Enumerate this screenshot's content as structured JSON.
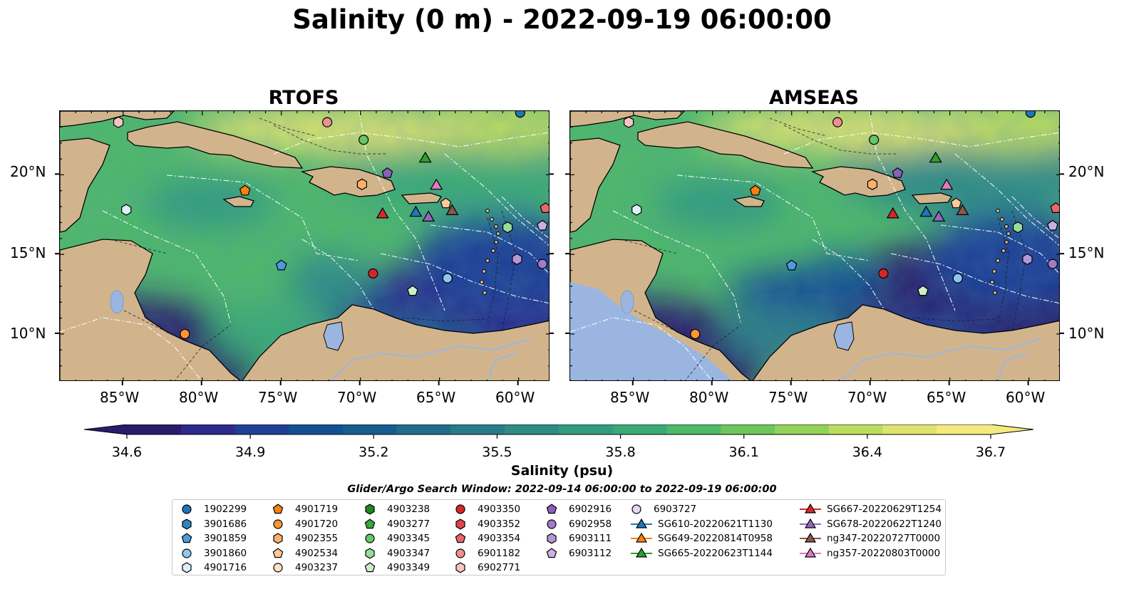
{
  "title": "Salinity (0 m) - 2022-09-19 06:00:00",
  "panels": [
    {
      "title": "RTOFS"
    },
    {
      "title": "AMSEAS"
    }
  ],
  "lon_ticks": [
    "85°W",
    "80°W",
    "75°W",
    "70°W",
    "65°W",
    "60°W"
  ],
  "lat_ticks": [
    "20°N",
    "15°N",
    "10°N"
  ],
  "colorbar": {
    "label": "Salinity (psu)",
    "ticks": [
      "34.6",
      "34.9",
      "35.2",
      "35.5",
      "35.8",
      "36.1",
      "36.4",
      "36.7"
    ],
    "min": 34.6,
    "max": 36.7,
    "extend": "both",
    "colormap": "haline",
    "colors": [
      "#2a1b6b",
      "#2c2a8c",
      "#1f3e96",
      "#134f93",
      "#155e8f",
      "#1f6d8b",
      "#297c87",
      "#2f8c84",
      "#329b7f",
      "#3aaa75",
      "#4eb968",
      "#6dc65b",
      "#94d159",
      "#bcdc61",
      "#dfe36f",
      "#f4ea80"
    ]
  },
  "search_window": "Glider/Argo Search Window: 2022-09-14 06:00:00 to 2022-09-19 06:00:00",
  "land_color": "#d2b48c",
  "lake_color": "#9ab6e0",
  "legend": [
    {
      "label": "1902299",
      "marker": "circle",
      "color": "#1f77b4",
      "line": false
    },
    {
      "label": "3901686",
      "marker": "hexagon",
      "color": "#2e86c1",
      "line": false
    },
    {
      "label": "3901859",
      "marker": "pentagon",
      "color": "#4c9be0",
      "line": false
    },
    {
      "label": "3901860",
      "marker": "circle",
      "color": "#8ec6ee",
      "line": false
    },
    {
      "label": "4901716",
      "marker": "hexagon",
      "color": "#dbeefb",
      "line": false
    },
    {
      "label": "4901719",
      "marker": "pentagon",
      "color": "#ff7f0e",
      "line": false
    },
    {
      "label": "4901720",
      "marker": "circle",
      "color": "#ff9533",
      "line": false
    },
    {
      "label": "4902355",
      "marker": "hexagon",
      "color": "#ffb066",
      "line": false
    },
    {
      "label": "4902534",
      "marker": "pentagon",
      "color": "#ffc999",
      "line": false
    },
    {
      "label": "4903237",
      "marker": "circle",
      "color": "#ffe0c2",
      "line": false
    },
    {
      "label": "4903238",
      "marker": "hexagon",
      "color": "#1e8a1e",
      "line": false
    },
    {
      "label": "4903277",
      "marker": "pentagon",
      "color": "#3aa83a",
      "line": false
    },
    {
      "label": "4903345",
      "marker": "circle",
      "color": "#66c766",
      "line": false
    },
    {
      "label": "4903347",
      "marker": "hexagon",
      "color": "#98dc98",
      "line": false
    },
    {
      "label": "4903349",
      "marker": "pentagon",
      "color": "#cdf0c6",
      "line": false
    },
    {
      "label": "4903350",
      "marker": "circle",
      "color": "#d62728",
      "line": false
    },
    {
      "label": "4903352",
      "marker": "hexagon",
      "color": "#e0454a",
      "line": false
    },
    {
      "label": "4903354",
      "marker": "pentagon",
      "color": "#e8676a",
      "line": false
    },
    {
      "label": "6901182",
      "marker": "circle",
      "color": "#f08f8f",
      "line": false
    },
    {
      "label": "6902771",
      "marker": "hexagon",
      "color": "#f7c3c3",
      "line": false
    },
    {
      "label": "6902916",
      "marker": "pentagon",
      "color": "#8c5fb8",
      "line": false
    },
    {
      "label": "6902958",
      "marker": "circle",
      "color": "#a07cc5",
      "line": false
    },
    {
      "label": "6903111",
      "marker": "hexagon",
      "color": "#b596d6",
      "line": false
    },
    {
      "label": "6903112",
      "marker": "pentagon",
      "color": "#c9b0e3",
      "line": false
    },
    {
      "label": "6903727",
      "marker": "circle",
      "color": "#e5d6f3",
      "line": false
    },
    {
      "label": "SG610-20220621T1130",
      "marker": "triangle",
      "color": "#1f77b4",
      "line": true
    },
    {
      "label": "SG649-20220814T0958",
      "marker": "triangle",
      "color": "#ff7f0e",
      "line": true
    },
    {
      "label": "SG665-20220623T1144",
      "marker": "triangle",
      "color": "#2ca02c",
      "line": true
    },
    {
      "label": "SG667-20220629T1254",
      "marker": "triangle",
      "color": "#d62728",
      "line": true
    },
    {
      "label": "SG678-20220622T1240",
      "marker": "triangle",
      "color": "#9467bd",
      "line": true
    },
    {
      "label": "ng347-20220727T0000",
      "marker": "triangle",
      "color": "#8c564b",
      "line": true
    },
    {
      "label": "ng357-20220803T0000",
      "marker": "triangle",
      "color": "#e377c2",
      "line": true
    }
  ],
  "map_extent": {
    "lon": [
      -89,
      -58
    ],
    "lat": [
      7,
      24
    ]
  },
  "observations": [
    {
      "id": "1902299",
      "lon": -59.9,
      "lat": 23.9
    },
    {
      "id": "3901860",
      "lon": -64.5,
      "lat": 13.5
    },
    {
      "id": "4901716",
      "lon": -84.8,
      "lat": 17.8
    },
    {
      "id": "3901859",
      "lon": -75.0,
      "lat": 14.3
    },
    {
      "id": "4901719",
      "lon": -77.3,
      "lat": 19.0
    },
    {
      "id": "4901720",
      "lon": -81.1,
      "lat": 10.0
    },
    {
      "id": "4902355",
      "lon": -69.9,
      "lat": 19.4
    },
    {
      "id": "4903345",
      "lon": -69.8,
      "lat": 22.2
    },
    {
      "id": "4903347",
      "lon": -60.7,
      "lat": 16.7
    },
    {
      "id": "4903349",
      "lon": -66.7,
      "lat": 12.7
    },
    {
      "id": "4903350",
      "lon": -69.2,
      "lat": 13.8
    },
    {
      "id": "4903354",
      "lon": -58.3,
      "lat": 17.9
    },
    {
      "id": "6901182",
      "lon": -72.1,
      "lat": 23.3
    },
    {
      "id": "6902771",
      "lon": -85.3,
      "lat": 23.3
    },
    {
      "id": "6902916",
      "lon": -68.3,
      "lat": 20.1
    },
    {
      "id": "6902958",
      "lon": -58.5,
      "lat": 14.4
    },
    {
      "id": "6903111",
      "lon": -60.1,
      "lat": 14.7
    },
    {
      "id": "6903112",
      "lon": -58.5,
      "lat": 16.8
    },
    {
      "id": "4902534",
      "lon": -64.6,
      "lat": 18.2
    },
    {
      "id": "SG610-20220621T1130",
      "lon": -66.5,
      "lat": 17.6
    },
    {
      "id": "SG665-20220623T1144",
      "lon": -65.9,
      "lat": 21.0
    },
    {
      "id": "SG667-20220629T1254",
      "lon": -68.6,
      "lat": 17.5
    },
    {
      "id": "SG678-20220622T1240",
      "lon": -65.7,
      "lat": 17.3
    },
    {
      "id": "ng347-20220727T0000",
      "lon": -64.2,
      "lat": 17.7
    },
    {
      "id": "ng357-20220803T0000",
      "lon": -65.2,
      "lat": 19.3
    }
  ]
}
